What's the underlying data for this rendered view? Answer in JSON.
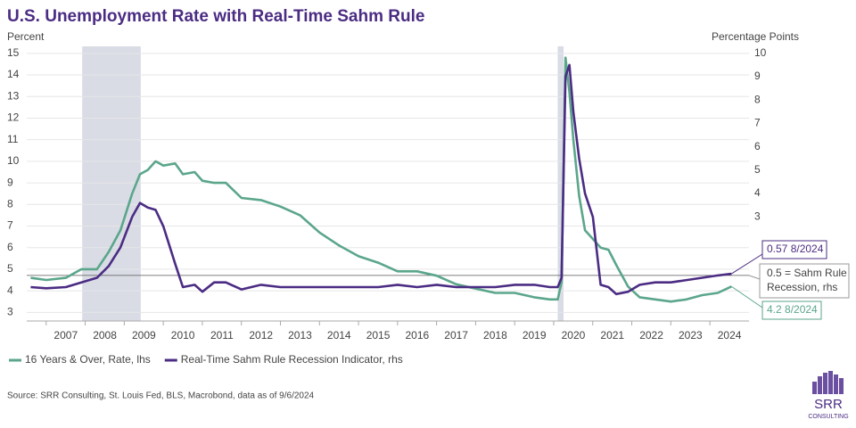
{
  "chart_data": {
    "type": "line",
    "title": "U.S. Unemployment Rate with Real-Time Sahm Rule",
    "y_label": "Percent",
    "y2_label": "Percentage Points",
    "x": [
      2006.6,
      2007.0,
      2007.5,
      2007.9,
      2008.3,
      2008.6,
      2008.9,
      2009.2,
      2009.4,
      2009.6,
      2009.8,
      2010.0,
      2010.3,
      2010.5,
      2010.8,
      2011.0,
      2011.3,
      2011.6,
      2012.0,
      2012.5,
      2013.0,
      2013.5,
      2014.0,
      2014.5,
      2015.0,
      2015.5,
      2016.0,
      2016.5,
      2017.0,
      2017.5,
      2018.0,
      2018.5,
      2019.0,
      2019.5,
      2019.9,
      2020.1,
      2020.2,
      2020.3,
      2020.4,
      2020.5,
      2020.65,
      2020.8,
      2021.0,
      2021.2,
      2021.4,
      2021.6,
      2021.9,
      2022.2,
      2022.6,
      2023.0,
      2023.4,
      2023.8,
      2024.2,
      2024.55
    ],
    "series": [
      {
        "name": "16 Years & Over, Rate, lhs",
        "color": "#5ba68b",
        "values": [
          4.6,
          4.5,
          4.6,
          5.0,
          5.0,
          5.8,
          6.8,
          8.5,
          9.4,
          9.6,
          10.0,
          9.8,
          9.9,
          9.4,
          9.5,
          9.1,
          9.0,
          9.0,
          8.3,
          8.2,
          7.9,
          7.5,
          6.7,
          6.1,
          5.6,
          5.3,
          4.9,
          4.9,
          4.7,
          4.3,
          4.1,
          3.9,
          3.9,
          3.7,
          3.6,
          3.6,
          4.4,
          14.8,
          13.2,
          11.0,
          8.4,
          6.8,
          6.4,
          6.0,
          5.9,
          5.2,
          4.2,
          3.7,
          3.6,
          3.5,
          3.6,
          3.8,
          3.9,
          4.2
        ]
      },
      {
        "name": "Real-Time Sahm Rule Recession Indicator, rhs",
        "color": "#4b2c83",
        "axis": "y2",
        "values": [
          0.0,
          -0.05,
          0.0,
          0.2,
          0.4,
          0.9,
          1.7,
          3.0,
          3.6,
          3.4,
          3.3,
          2.6,
          1.0,
          0.0,
          0.1,
          -0.2,
          0.2,
          0.2,
          -0.1,
          0.1,
          0.0,
          0.0,
          0.0,
          0.0,
          0.0,
          0.0,
          0.1,
          0.0,
          0.1,
          0.0,
          0.0,
          0.0,
          0.1,
          0.1,
          0.0,
          0.0,
          0.4,
          9.0,
          9.5,
          7.5,
          5.5,
          4.0,
          3.0,
          0.1,
          0.0,
          -0.3,
          -0.2,
          0.1,
          0.2,
          0.2,
          0.3,
          0.4,
          0.5,
          0.57
        ]
      }
    ],
    "xlim": [
      2006.5,
      2025.0
    ],
    "xticks": [
      {
        "value": 2007.5,
        "label": "2007"
      },
      {
        "value": 2008.5,
        "label": "2008"
      },
      {
        "value": 2009.5,
        "label": "2009"
      },
      {
        "value": 2010.5,
        "label": "2010"
      },
      {
        "value": 2011.5,
        "label": "2011"
      },
      {
        "value": 2012.5,
        "label": "2012"
      },
      {
        "value": 2013.5,
        "label": "2013"
      },
      {
        "value": 2014.5,
        "label": "2014"
      },
      {
        "value": 2015.5,
        "label": "2015"
      },
      {
        "value": 2016.5,
        "label": "2016"
      },
      {
        "value": 2017.5,
        "label": "2017"
      },
      {
        "value": 2018.5,
        "label": "2018"
      },
      {
        "value": 2019.5,
        "label": "2019"
      },
      {
        "value": 2020.5,
        "label": "2020"
      },
      {
        "value": 2021.5,
        "label": "2021"
      },
      {
        "value": 2022.5,
        "label": "2022"
      },
      {
        "value": 2023.5,
        "label": "2023"
      },
      {
        "value": 2024.5,
        "label": "2024"
      }
    ],
    "ylim": [
      2.6,
      15.2
    ],
    "yticks": [
      3,
      4,
      5,
      6,
      7,
      8,
      9,
      10,
      11,
      12,
      13,
      14,
      15
    ],
    "y2lim": [
      -1.45,
      10.18
    ],
    "y2ticks": [
      3,
      4,
      5,
      6,
      7,
      8,
      9,
      10
    ],
    "grid": true,
    "recessions": [
      [
        2007.92,
        2009.42
      ],
      [
        2020.1,
        2020.25
      ]
    ],
    "threshold": 0.5,
    "annotations": [
      "0.57 8/2024",
      [
        "0.5 = Sahm Rule",
        "Recession, rhs"
      ],
      "4.2 8/2024"
    ],
    "source": "Source: SRR Consulting, St. Louis Fed, BLS, Macrobond, data as of 9/6/2024",
    "logo": [
      "SRR",
      "CONSULTING"
    ]
  }
}
